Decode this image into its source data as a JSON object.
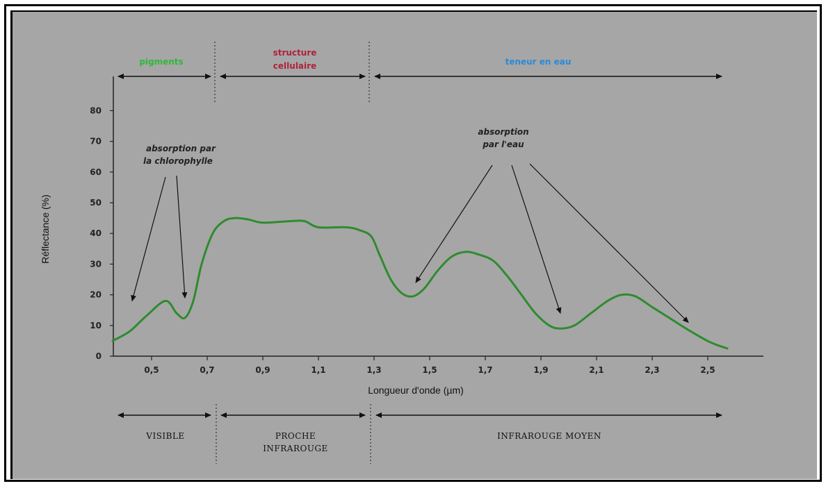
{
  "chart_data": {
    "type": "line",
    "xlabel": "Longueur d'onde (µm)",
    "ylabel": "Réflectance (%)",
    "xlim": [
      0.35,
      2.6
    ],
    "ylim": [
      0,
      90
    ],
    "x_ticks": [
      "0,5",
      "0,7",
      "0,9",
      "1,1",
      "1,3",
      "1,5",
      "1,7",
      "1,9",
      "2,1",
      "2,3",
      "2,5"
    ],
    "x_tick_values": [
      0.5,
      0.7,
      0.9,
      1.1,
      1.3,
      1.5,
      1.7,
      1.9,
      2.1,
      2.3,
      2.5
    ],
    "y_ticks": [
      "0",
      "10",
      "20",
      "30",
      "40",
      "50",
      "60",
      "70",
      "80"
    ],
    "y_tick_values": [
      0,
      10,
      20,
      30,
      40,
      50,
      60,
      70,
      80
    ],
    "line_color": "#2e8b2e",
    "series": [
      {
        "x": [
          0.36,
          0.42,
          0.48,
          0.55,
          0.59,
          0.62,
          0.65,
          0.68,
          0.72,
          0.76,
          0.8,
          0.85,
          0.9,
          1.0,
          1.05,
          1.1,
          1.2,
          1.25,
          1.29,
          1.32,
          1.36,
          1.4,
          1.44,
          1.48,
          1.53,
          1.58,
          1.63,
          1.68,
          1.73,
          1.78,
          1.83,
          1.88,
          1.93,
          1.97,
          2.02,
          2.08,
          2.14,
          2.19,
          2.24,
          2.3,
          2.37,
          2.44,
          2.51,
          2.57
        ],
        "y": [
          5,
          8,
          13,
          18,
          14,
          12.5,
          18,
          30,
          40,
          44,
          45,
          44.5,
          43.5,
          44,
          44,
          42,
          42,
          41,
          39,
          33,
          25,
          20.5,
          19.5,
          22,
          28,
          32.5,
          34,
          33,
          31,
          26,
          20,
          14,
          10,
          9,
          10,
          14,
          18,
          20,
          19.5,
          16,
          12,
          8,
          4.5,
          2.5
        ]
      }
    ],
    "top_bands": [
      {
        "label": "pigments",
        "x_from": 0.35,
        "x_to": 0.72,
        "color": "#2fb83a"
      },
      {
        "label": "structure cellulaire",
        "x_from": 0.72,
        "x_to": 1.28,
        "color": "#b0213c"
      },
      {
        "label": "teneur en eau",
        "x_from": 1.28,
        "x_to": 2.55,
        "color": "#2a8ad8"
      }
    ],
    "bottom_regions": [
      {
        "label": "VISIBLE",
        "x_from": 0.35,
        "x_to": 0.72
      },
      {
        "label": "PROCHE INFRAROUGE",
        "x_from": 0.72,
        "x_to": 1.28
      },
      {
        "label": "INFRAROUGE MOYEN",
        "x_from": 1.28,
        "x_to": 2.55
      }
    ],
    "annotations": [
      {
        "text": "absorption par la chlorophylle",
        "targets": [
          [
            0.43,
            18
          ],
          [
            0.62,
            19
          ]
        ]
      },
      {
        "text": "absorption par l'eau",
        "targets": [
          [
            1.45,
            24
          ],
          [
            1.97,
            14
          ],
          [
            2.43,
            11
          ]
        ]
      }
    ]
  },
  "labels": {
    "band_pigments": "pigments",
    "band_structure_1": "structure",
    "band_structure_2": "cellulaire",
    "band_eau": "teneur en eau",
    "anno_chloro_1": "absorption par",
    "anno_chloro_2": "la chlorophylle",
    "anno_eau_1": "absorption",
    "anno_eau_2": "par l'eau",
    "region_visible": "VISIBLE",
    "region_proche_1": "PROCHE",
    "region_proche_2": "INFRAROUGE",
    "region_moyen": "INFRAROUGE MOYEN"
  }
}
